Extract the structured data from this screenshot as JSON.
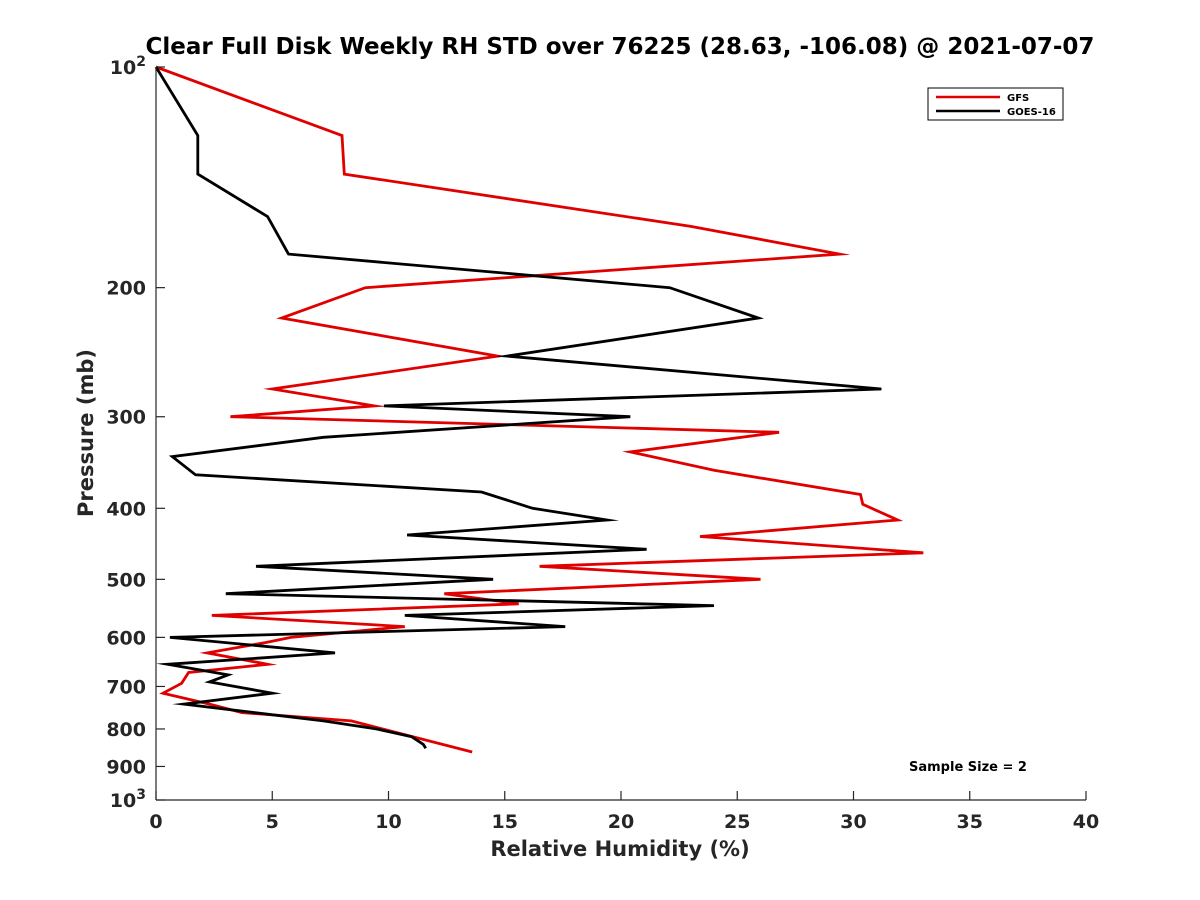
{
  "chart_data": {
    "type": "line",
    "title": "Clear Full Disk Weekly RH STD over 76225 (28.63, -106.08) @ 2021-07-07",
    "xlabel": "Relative Humidity (%)",
    "ylabel": "Pressure (mb)",
    "xlim": [
      0,
      40
    ],
    "ylim": [
      100,
      1000
    ],
    "yscale": "log",
    "y_reversed": true,
    "x_ticks": [
      "0",
      "5",
      "10",
      "15",
      "20",
      "25",
      "30",
      "35",
      "40"
    ],
    "y_ticks": [
      {
        "value": 100,
        "label": "10",
        "sup": "2"
      },
      {
        "value": 200,
        "label": "200"
      },
      {
        "value": 300,
        "label": "300"
      },
      {
        "value": 400,
        "label": "400"
      },
      {
        "value": 500,
        "label": "500"
      },
      {
        "value": 600,
        "label": "600"
      },
      {
        "value": 700,
        "label": "700"
      },
      {
        "value": 800,
        "label": "800"
      },
      {
        "value": 900,
        "label": "900"
      },
      {
        "value": 1000,
        "label": "10",
        "sup": "3"
      }
    ],
    "legend": {
      "position": "top-right"
    },
    "grid": false,
    "annotation": "Sample Size = 2",
    "series": [
      {
        "name": "GFS",
        "color": "#e00000",
        "x": [
          0,
          8,
          8.1,
          23,
          29.4,
          9,
          5.4,
          14.7,
          5,
          9.4,
          3.2,
          26.8,
          20.4,
          24,
          30.3,
          30.4,
          31.9,
          23.4,
          33,
          16.5,
          26,
          12.4,
          15.6,
          2.4,
          10.7,
          5.8,
          4.7,
          2.2,
          4.8,
          1.4,
          1.1,
          0.3,
          2.3,
          3.7,
          8.4,
          13.6
        ],
        "y": [
          100,
          124,
          140,
          165,
          180,
          200,
          220,
          248,
          275,
          290,
          300,
          315,
          335,
          355,
          383,
          395,
          415,
          437,
          460,
          480,
          500,
          523,
          540,
          560,
          580,
          600,
          610,
          630,
          653,
          670,
          693,
          715,
          740,
          760,
          780,
          860
        ]
      },
      {
        "name": "GOES-16",
        "color": "#000000",
        "x": [
          0,
          1.8,
          1.8,
          4.8,
          5.7,
          22.1,
          25.9,
          15.1,
          31.2,
          9.8,
          20.4,
          7.2,
          0.7,
          1.7,
          14,
          16.2,
          19.4,
          10.8,
          21.1,
          4.3,
          14.5,
          3,
          24,
          10.7,
          17.6,
          0.6,
          7.7,
          0.5,
          3.1,
          2.3,
          5,
          1.2,
          7.2,
          9.5,
          11,
          11.5,
          11.6
        ],
        "y": [
          100,
          124,
          140,
          160,
          180,
          200,
          220,
          248,
          275,
          290,
          300,
          320,
          340,
          360,
          380,
          400,
          415,
          435,
          455,
          480,
          500,
          523,
          543,
          560,
          580,
          600,
          630,
          653,
          675,
          690,
          715,
          740,
          780,
          800,
          820,
          840,
          850
        ]
      }
    ]
  }
}
